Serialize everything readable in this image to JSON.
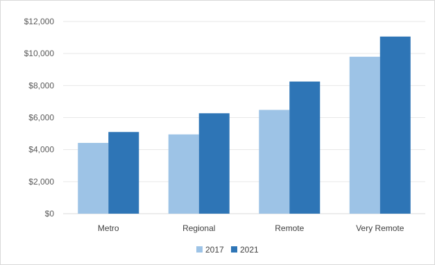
{
  "chart_data": {
    "type": "bar",
    "categories": [
      "Metro",
      "Regional",
      "Remote",
      "Very Remote"
    ],
    "series": [
      {
        "name": "2017",
        "color": "#9dc3e6",
        "values": [
          4420,
          4950,
          6480,
          9800
        ]
      },
      {
        "name": "2021",
        "color": "#2e75b6",
        "values": [
          5100,
          6270,
          8250,
          11060
        ]
      }
    ],
    "ylim": [
      0,
      12000
    ],
    "yticks": [
      "$0",
      "$2,000",
      "$4,000",
      "$6,000",
      "$8,000",
      "$10,000",
      "$12,000"
    ],
    "ytick_values": [
      0,
      2000,
      4000,
      6000,
      8000,
      10000,
      12000
    ],
    "grid": true,
    "legend": "bottom"
  }
}
